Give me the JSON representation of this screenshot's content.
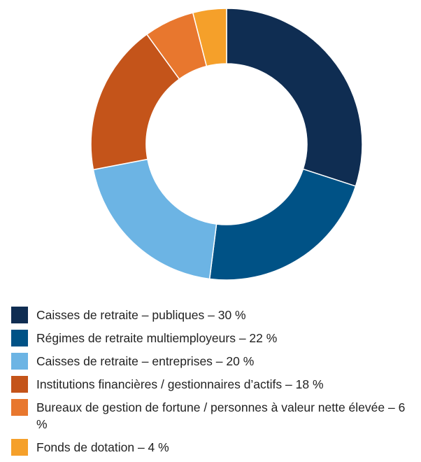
{
  "chart_data": {
    "type": "donut",
    "categories": [
      "Caisses de retraite – publiques – 30 %",
      "Régimes de retraite multiemployeurs – 22 %",
      "Caisses de retraite – entreprises – 20 %",
      "Institutions financières / gestionnaires d’actifs – 18 %",
      "Bureaux de gestion de fortune / personnes à valeur nette élevée – 6 %",
      "Fonds de dotation – 4 %"
    ],
    "values": [
      30,
      22,
      20,
      18,
      6,
      4
    ],
    "colors": [
      "#0f2d52",
      "#005286",
      "#6cb4e4",
      "#c4541a",
      "#e8772e",
      "#f5a02a"
    ],
    "legend": "bottom-left"
  }
}
